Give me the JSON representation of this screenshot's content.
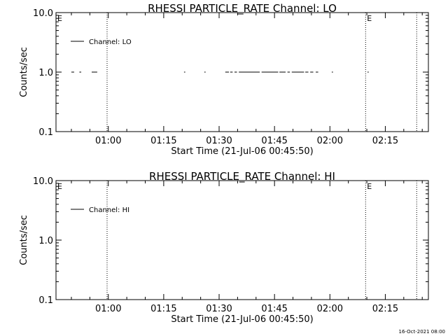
{
  "footer": {
    "timestamp": "16-Oct-2021 08:00"
  },
  "chart_data": [
    {
      "type": "line",
      "title": "RHESSI PARTICLE_RATE Channel: LO",
      "xlabel": "Start Time (21-Jul-06 00:45:50)",
      "ylabel": "Counts/sec",
      "yscale": "log",
      "ylim": [
        0.1,
        10.0
      ],
      "y_ticks": [
        {
          "value": 0.1,
          "label": "0.1"
        },
        {
          "value": 1.0,
          "label": "1.0"
        },
        {
          "value": 10.0,
          "label": "10.0"
        }
      ],
      "xlim": [
        "00:45:50",
        "02:26:40"
      ],
      "x_ticks": [
        {
          "value": "01:00",
          "label": "01:00"
        },
        {
          "value": "01:15",
          "label": "01:15"
        },
        {
          "value": "01:30",
          "label": "01:30"
        },
        {
          "value": "01:45",
          "label": "01:45"
        },
        {
          "value": "02:00",
          "label": "02:00"
        },
        {
          "value": "02:15",
          "label": "02:15"
        }
      ],
      "grid": false,
      "legend": {
        "position": "top-left",
        "entries": [
          "Channel: LO"
        ]
      },
      "series": [
        {
          "name": "Channel: LO",
          "segments": [
            {
              "start": "00:50:00",
              "end": "00:50:45",
              "value": 1.0
            },
            {
              "start": "00:52:10",
              "end": "00:52:40",
              "value": 1.0
            },
            {
              "start": "00:55:30",
              "end": "00:57:00",
              "value": 1.0
            },
            {
              "start": "01:20:30",
              "end": "01:20:50",
              "value": 1.0
            },
            {
              "start": "01:26:00",
              "end": "01:26:20",
              "value": 1.0
            },
            {
              "start": "01:31:40",
              "end": "01:32:40",
              "value": 1.0
            },
            {
              "start": "01:33:00",
              "end": "01:33:40",
              "value": 1.0
            },
            {
              "start": "01:34:10",
              "end": "01:34:50",
              "value": 1.0
            },
            {
              "start": "01:35:20",
              "end": "01:41:00",
              "value": 1.0
            },
            {
              "start": "01:41:30",
              "end": "01:46:00",
              "value": 1.0
            },
            {
              "start": "01:46:20",
              "end": "01:48:00",
              "value": 1.0
            },
            {
              "start": "01:48:30",
              "end": "01:49:10",
              "value": 1.0
            },
            {
              "start": "01:49:40",
              "end": "01:53:00",
              "value": 1.0
            },
            {
              "start": "01:53:20",
              "end": "01:54:10",
              "value": 1.0
            },
            {
              "start": "01:54:40",
              "end": "01:55:30",
              "value": 1.0
            },
            {
              "start": "01:56:10",
              "end": "01:56:50",
              "value": 1.0
            },
            {
              "start": "02:00:30",
              "end": "02:00:50",
              "value": 1.0
            },
            {
              "start": "02:10:10",
              "end": "02:10:30",
              "value": 1.0
            }
          ]
        }
      ],
      "markers": [
        {
          "time": "00:59:40",
          "label": ""
        },
        {
          "time": "02:09:40",
          "label": "E"
        },
        {
          "time": "02:23:30",
          "label": ""
        }
      ],
      "corner_label": "E"
    },
    {
      "type": "line",
      "title": "RHESSI PARTICLE_RATE Channel: HI",
      "xlabel": "Start Time (21-Jul-06 00:45:50)",
      "ylabel": "Counts/sec",
      "yscale": "log",
      "ylim": [
        0.1,
        10.0
      ],
      "y_ticks": [
        {
          "value": 0.1,
          "label": "0.1"
        },
        {
          "value": 1.0,
          "label": "1.0"
        },
        {
          "value": 10.0,
          "label": "10.0"
        }
      ],
      "xlim": [
        "00:45:50",
        "02:26:40"
      ],
      "x_ticks": [
        {
          "value": "01:00",
          "label": "01:00"
        },
        {
          "value": "01:15",
          "label": "01:15"
        },
        {
          "value": "01:30",
          "label": "01:30"
        },
        {
          "value": "01:45",
          "label": "01:45"
        },
        {
          "value": "02:00",
          "label": "02:00"
        },
        {
          "value": "02:15",
          "label": "02:15"
        }
      ],
      "grid": false,
      "legend": {
        "position": "top-left",
        "entries": [
          "Channel: HI"
        ]
      },
      "series": [
        {
          "name": "Channel: HI",
          "segments": []
        }
      ],
      "markers": [
        {
          "time": "00:59:40",
          "label": ""
        },
        {
          "time": "02:09:40",
          "label": "E"
        },
        {
          "time": "02:23:30",
          "label": ""
        }
      ],
      "corner_label": "E"
    }
  ]
}
